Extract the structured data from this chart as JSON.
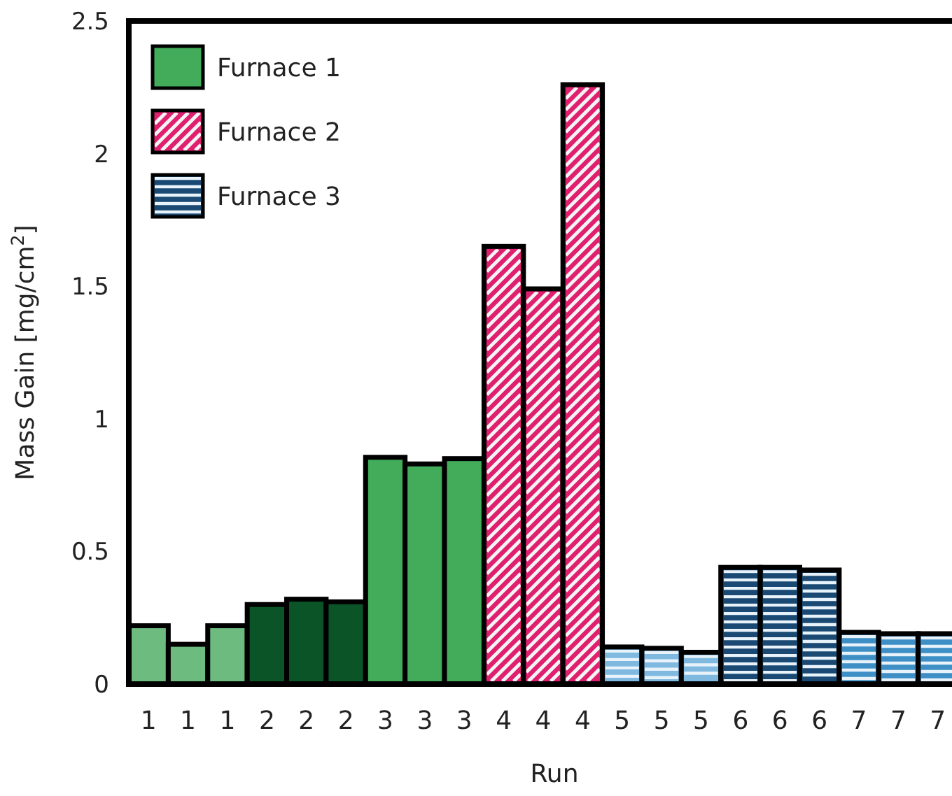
{
  "chart_data": {
    "type": "bar",
    "xlabel": "Run",
    "ylabel": "Mass Gain [mg/cm$^{2}$]",
    "categories": [
      "1",
      "1",
      "1",
      "2",
      "2",
      "2",
      "3",
      "3",
      "3",
      "4",
      "4",
      "4",
      "5",
      "5",
      "5",
      "6",
      "6",
      "6",
      "7",
      "7",
      "7"
    ],
    "ylim": [
      0,
      2.5
    ],
    "yticks": [
      0,
      0.5,
      1,
      1.5,
      2,
      2.5
    ],
    "legend": "top left",
    "series": [
      {
        "name": "Furnace 1",
        "color": "#42ac5a",
        "colors": [
          "#6dbb7e",
          "#6dbb7e",
          "#6dbb7e",
          "#0a5428",
          "#0a5428",
          "#0a5428",
          "#42ac5a",
          "#42ac5a",
          "#42ac5a",
          null,
          null,
          null,
          null,
          null,
          null,
          null,
          null,
          null,
          null,
          null,
          null
        ],
        "values": [
          0.22,
          0.15,
          0.22,
          0.3,
          0.32,
          0.31,
          0.855,
          0.83,
          0.85,
          null,
          null,
          null,
          null,
          null,
          null,
          null,
          null,
          null,
          null,
          null,
          null
        ]
      },
      {
        "name": "Furnace 2",
        "color": "#e0206f",
        "colors": [
          null,
          null,
          null,
          null,
          null,
          null,
          null,
          null,
          null,
          "#e0206f",
          "#e0206f",
          "#e0206f",
          null,
          null,
          null,
          null,
          null,
          null,
          null,
          null,
          null
        ],
        "values": [
          null,
          null,
          null,
          null,
          null,
          null,
          null,
          null,
          null,
          1.65,
          1.49,
          2.26,
          null,
          null,
          null,
          null,
          null,
          null,
          null,
          null,
          null
        ]
      },
      {
        "name": "Furnace 3",
        "color": "#1a4a73",
        "colors": [
          null,
          null,
          null,
          null,
          null,
          null,
          null,
          null,
          null,
          null,
          null,
          null,
          "#7fb9e0",
          "#7fb9e0",
          "#7fb9e0",
          "#1a4a73",
          "#1a4a73",
          "#1a4a73",
          "#3d8fc6",
          "#3d8fc6",
          "#3d8fc6"
        ],
        "values": [
          null,
          null,
          null,
          null,
          null,
          null,
          null,
          null,
          null,
          null,
          null,
          null,
          0.14,
          0.135,
          0.12,
          0.44,
          0.44,
          0.43,
          0.195,
          0.19,
          0.19
        ]
      }
    ]
  }
}
